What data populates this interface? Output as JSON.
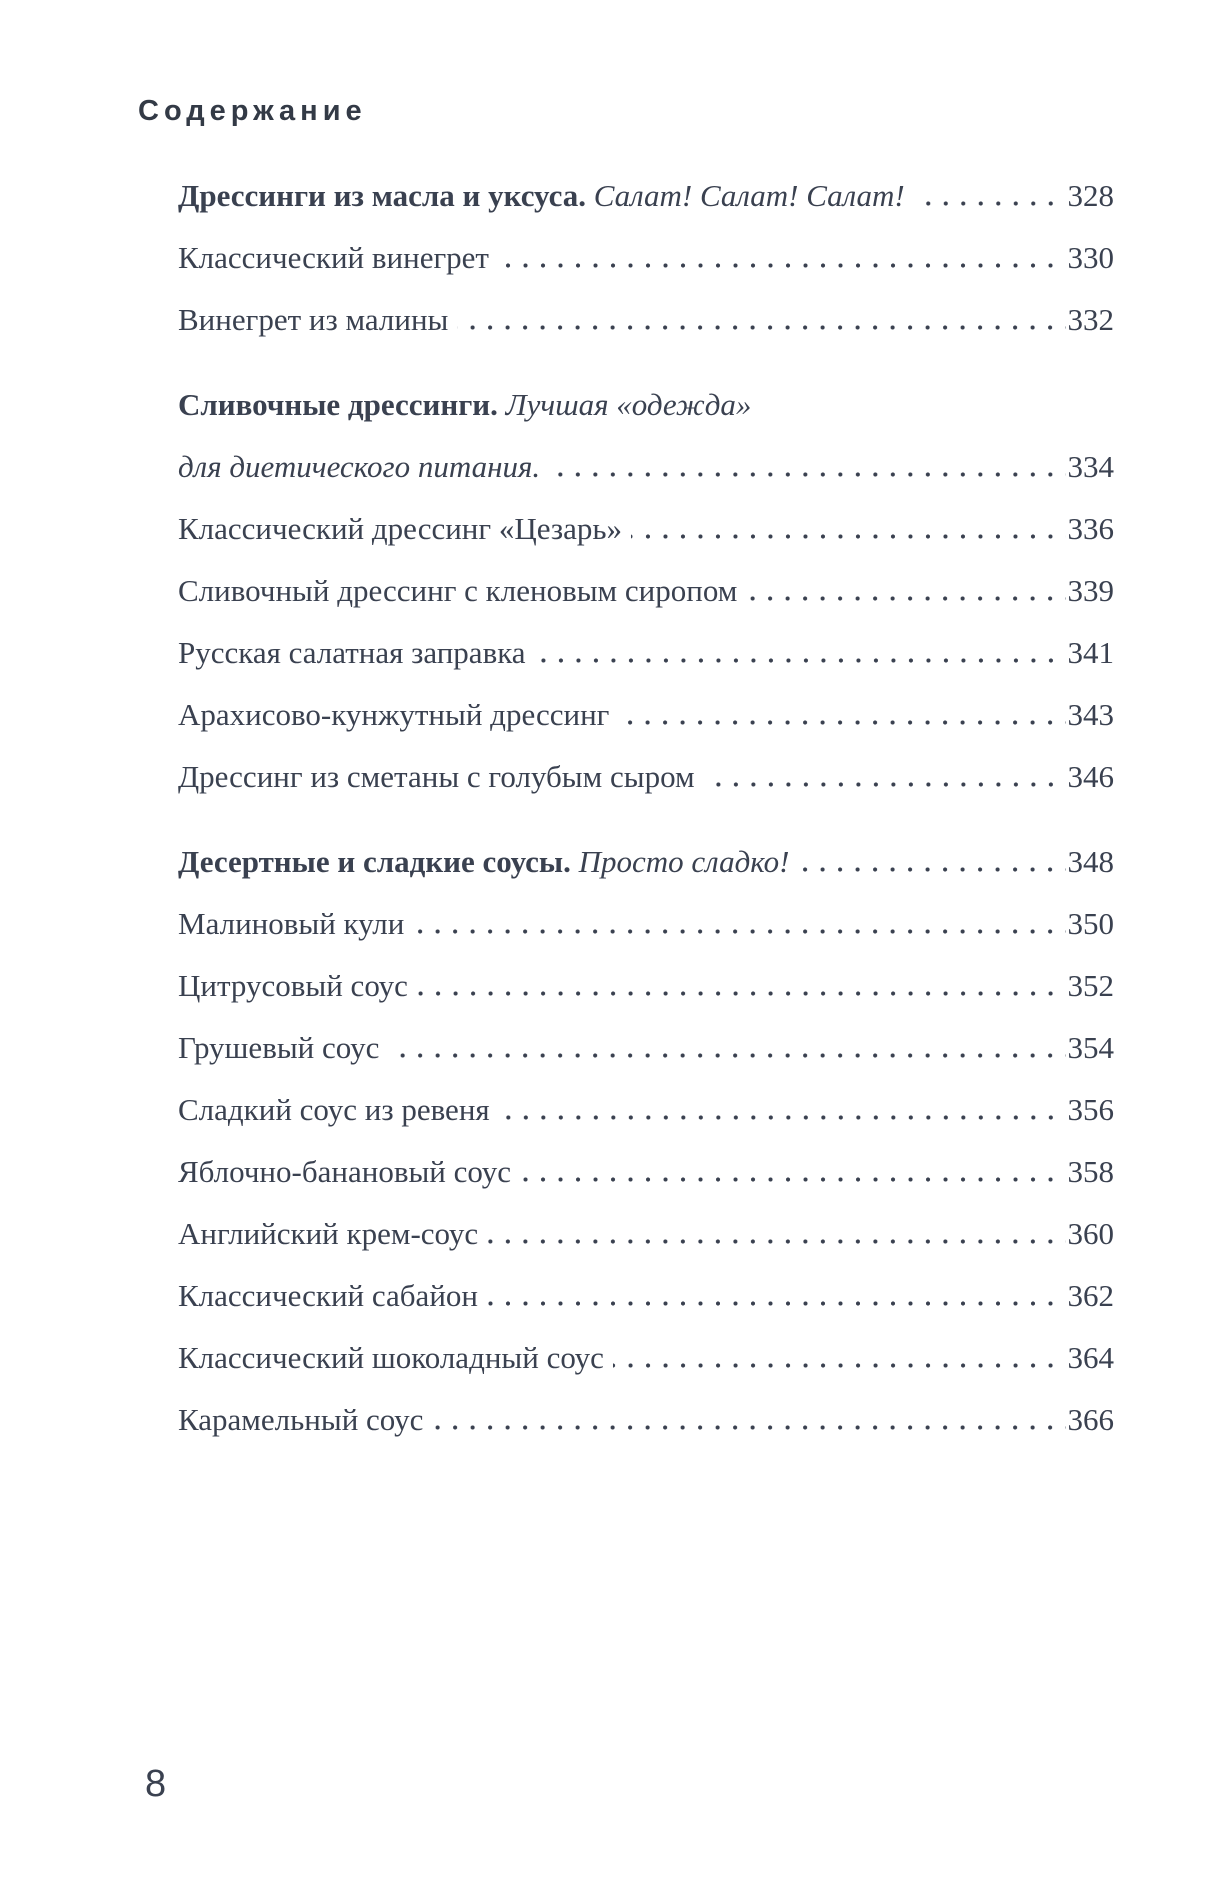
{
  "colors": {
    "background": "#ffffff",
    "text": "#3a4150",
    "heading": "#333a46"
  },
  "header": {
    "title": "Содержание"
  },
  "footer": {
    "page_number": "8"
  },
  "toc": {
    "entries": [
      {
        "bold": "Дрессинги из масла и уксуса.",
        "italic": "Салат! Салат! Салат!",
        "page": "328"
      },
      {
        "text": "Классический винегрет",
        "page": "330"
      },
      {
        "text": "Винегрет из малины",
        "page": "332"
      },
      {
        "bold": "Сливочные дрессинги.",
        "italic": "Лучшая «одежда»",
        "section_break": true,
        "no_leader": true
      },
      {
        "italic": "для диетического питания.",
        "page": "334"
      },
      {
        "text": "Классический дрессинг «Цезарь»",
        "page": "336"
      },
      {
        "text": "Сливочный дрессинг с кленовым сиропом",
        "page": "339"
      },
      {
        "text": "Русская салатная заправка",
        "page": "341"
      },
      {
        "text": "Арахисово-кунжутный дрессинг",
        "page": "343"
      },
      {
        "text": "Дрессинг из сметаны с голубым сыром",
        "page": "346"
      },
      {
        "bold": "Десертные и сладкие соусы.",
        "italic": "Просто сладко!",
        "page": "348",
        "section_break": true
      },
      {
        "text": "Малиновый кули",
        "page": "350"
      },
      {
        "text": "Цитрусовый соус",
        "page": "352"
      },
      {
        "text": "Грушевый соус",
        "page": "354"
      },
      {
        "text": "Сладкий соус из ревеня",
        "page": "356"
      },
      {
        "text": "Яблочно-банановый соус",
        "page": "358"
      },
      {
        "text": "Английский крем-соус",
        "page": "360"
      },
      {
        "text": "Классический сабайон",
        "page": "362"
      },
      {
        "text": "Классический шоколадный соус",
        "page": "364"
      },
      {
        "text": "Карамельный соус",
        "page": "366"
      }
    ]
  }
}
